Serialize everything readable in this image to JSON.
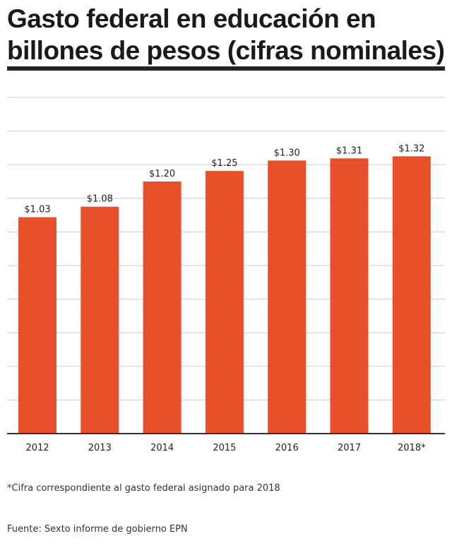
{
  "header": {
    "title": "Gasto federal en educación en billones de pesos (cifras nominales)"
  },
  "chart_data": {
    "type": "bar",
    "categories": [
      "2012",
      "2013",
      "2014",
      "2015",
      "2016",
      "2017",
      "2018*"
    ],
    "values": [
      1.03,
      1.08,
      1.2,
      1.25,
      1.3,
      1.31,
      1.32
    ],
    "value_labels": [
      "$1.03",
      "$1.08",
      "$1.20",
      "$1.25",
      "$1.30",
      "$1.31",
      "$1.32"
    ],
    "ylim": [
      0,
      1.6
    ],
    "grid": true,
    "bar_color": "#e8502b"
  },
  "footer": {
    "note": "*Cifra correspondiente al gasto federal asignado para 2018",
    "source": "Fuente: Sexto informe de gobierno EPN"
  }
}
